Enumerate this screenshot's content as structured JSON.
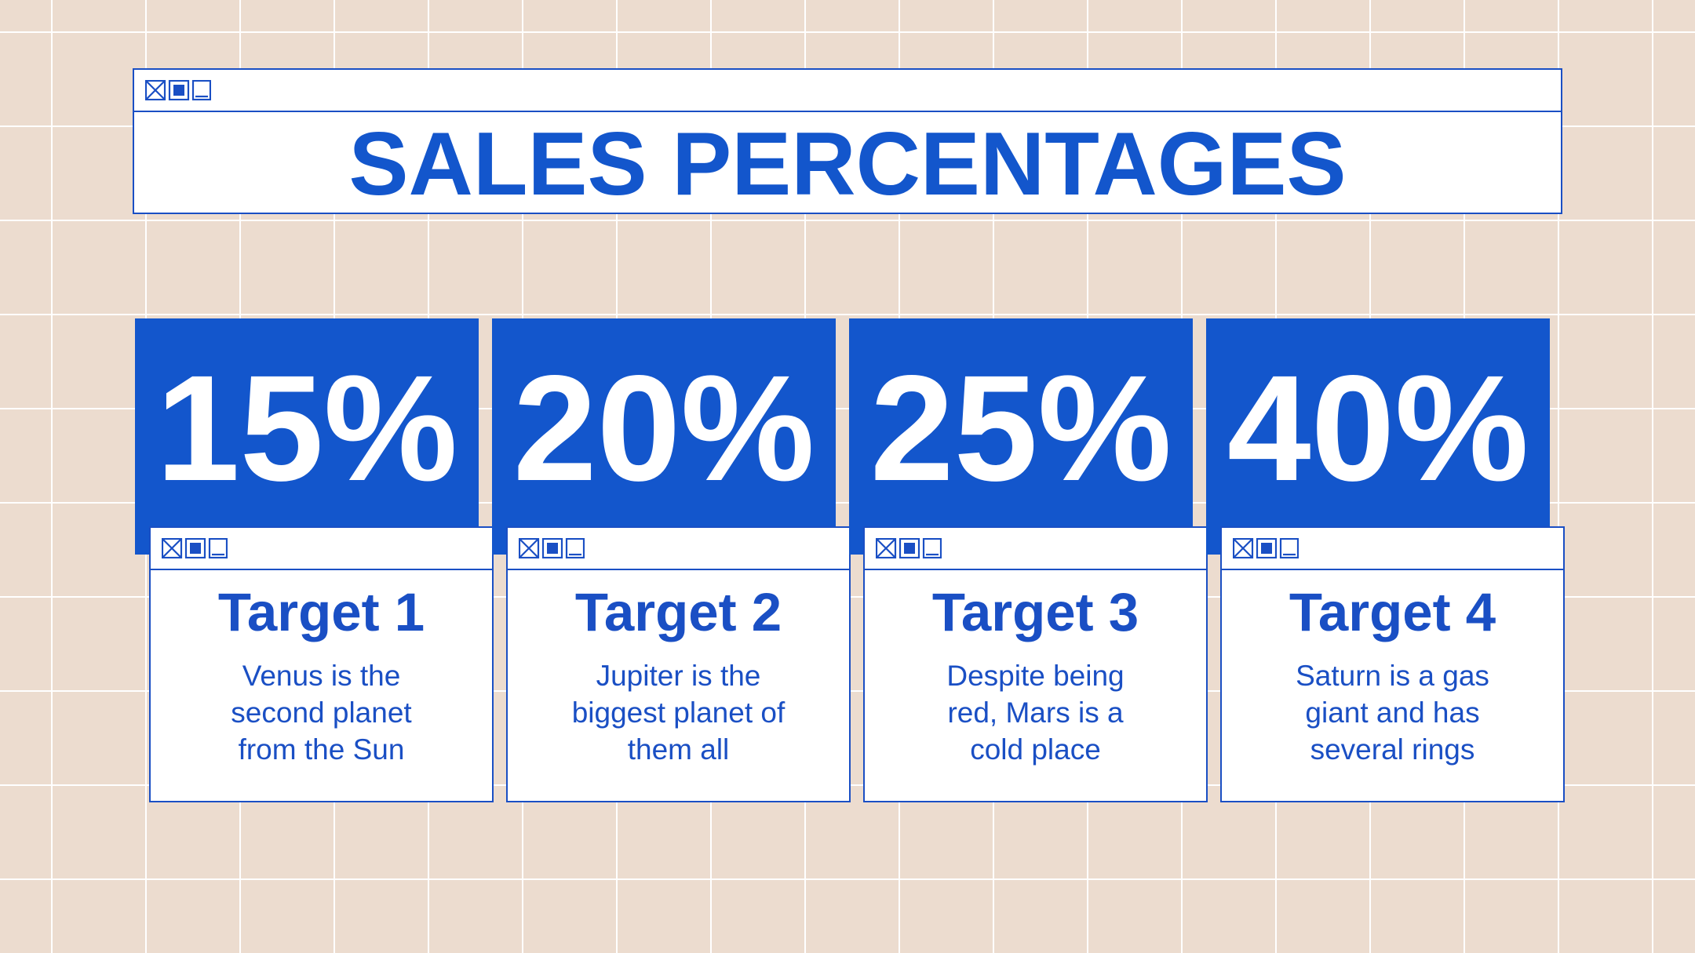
{
  "header": {
    "title": "SALES PERCENTAGES"
  },
  "cards": [
    {
      "percent": "15%",
      "title": "Target 1",
      "lines": [
        "Venus is the",
        "second planet",
        "from the Sun"
      ]
    },
    {
      "percent": "20%",
      "title": "Target 2",
      "lines": [
        "Jupiter is the",
        "biggest planet of",
        "them all"
      ]
    },
    {
      "percent": "25%",
      "title": "Target 3",
      "lines": [
        "Despite being",
        "red, Mars is a",
        "cold place"
      ]
    },
    {
      "percent": "40%",
      "title": "Target 4",
      "lines": [
        "Saturn is a gas",
        "giant and has",
        "several rings"
      ]
    }
  ]
}
